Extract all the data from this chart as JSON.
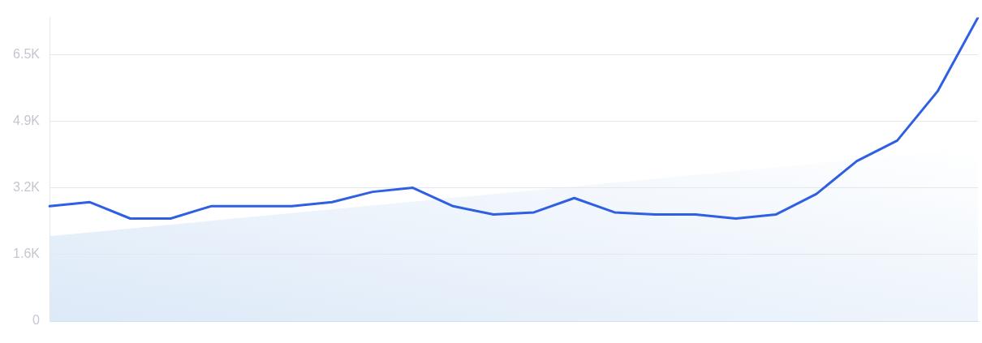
{
  "chart_data": {
    "type": "line",
    "categories": [
      null,
      null,
      null,
      null,
      null,
      null,
      null,
      null,
      null,
      null,
      null,
      null,
      null,
      null,
      null,
      null,
      null,
      null,
      null,
      null,
      null,
      null,
      null,
      null
    ],
    "ylim": [
      0,
      7400
    ],
    "yticks": [
      {
        "value": 0,
        "label": "0"
      },
      {
        "value": 1625,
        "label": "1.6K"
      },
      {
        "value": 3250,
        "label": "3.2K"
      },
      {
        "value": 4875,
        "label": "4.9K"
      },
      {
        "value": 6500,
        "label": "6.5K"
      }
    ],
    "grid": "y",
    "tick_labels": "y",
    "marker": "none",
    "series": [
      {
        "color": "#2f5fe3",
        "values": [
          2800,
          2900,
          2500,
          2500,
          2800,
          2800,
          2800,
          2900,
          3150,
          3250,
          2800,
          2600,
          2650,
          3000,
          2650,
          2600,
          2600,
          2500,
          2600,
          3100,
          3900,
          4400,
          5600,
          7400
        ]
      }
    ]
  }
}
